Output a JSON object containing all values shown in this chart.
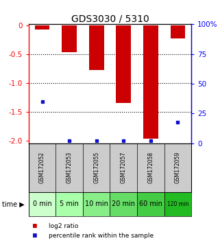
{
  "title": "GDS3030 / 5310",
  "samples": [
    "GSM172052",
    "GSM172053",
    "GSM172055",
    "GSM172057",
    "GSM172058",
    "GSM172059"
  ],
  "time_labels": [
    "0 min",
    "5 min",
    "10 min",
    "20 min",
    "60 min",
    "120 min"
  ],
  "log2_ratio": [
    -0.07,
    -0.47,
    -0.77,
    -1.35,
    -1.97,
    -0.22
  ],
  "percentile_rank": [
    35,
    2,
    2,
    2,
    2,
    18
  ],
  "ylim_left": [
    -2.05,
    0.02
  ],
  "yticks_left": [
    0,
    -0.5,
    -1.0,
    -1.5,
    -2.0
  ],
  "yticks_right": [
    100,
    75,
    50,
    25,
    0
  ],
  "bar_color": "#cc0000",
  "marker_color": "#1111cc",
  "time_row_colors": [
    "#ccffcc",
    "#aaffaa",
    "#88ee88",
    "#66dd66",
    "#44cc44",
    "#22bb22"
  ],
  "sample_row_color": "#cccccc",
  "legend_log2_color": "#cc0000",
  "legend_pct_color": "#1111cc"
}
